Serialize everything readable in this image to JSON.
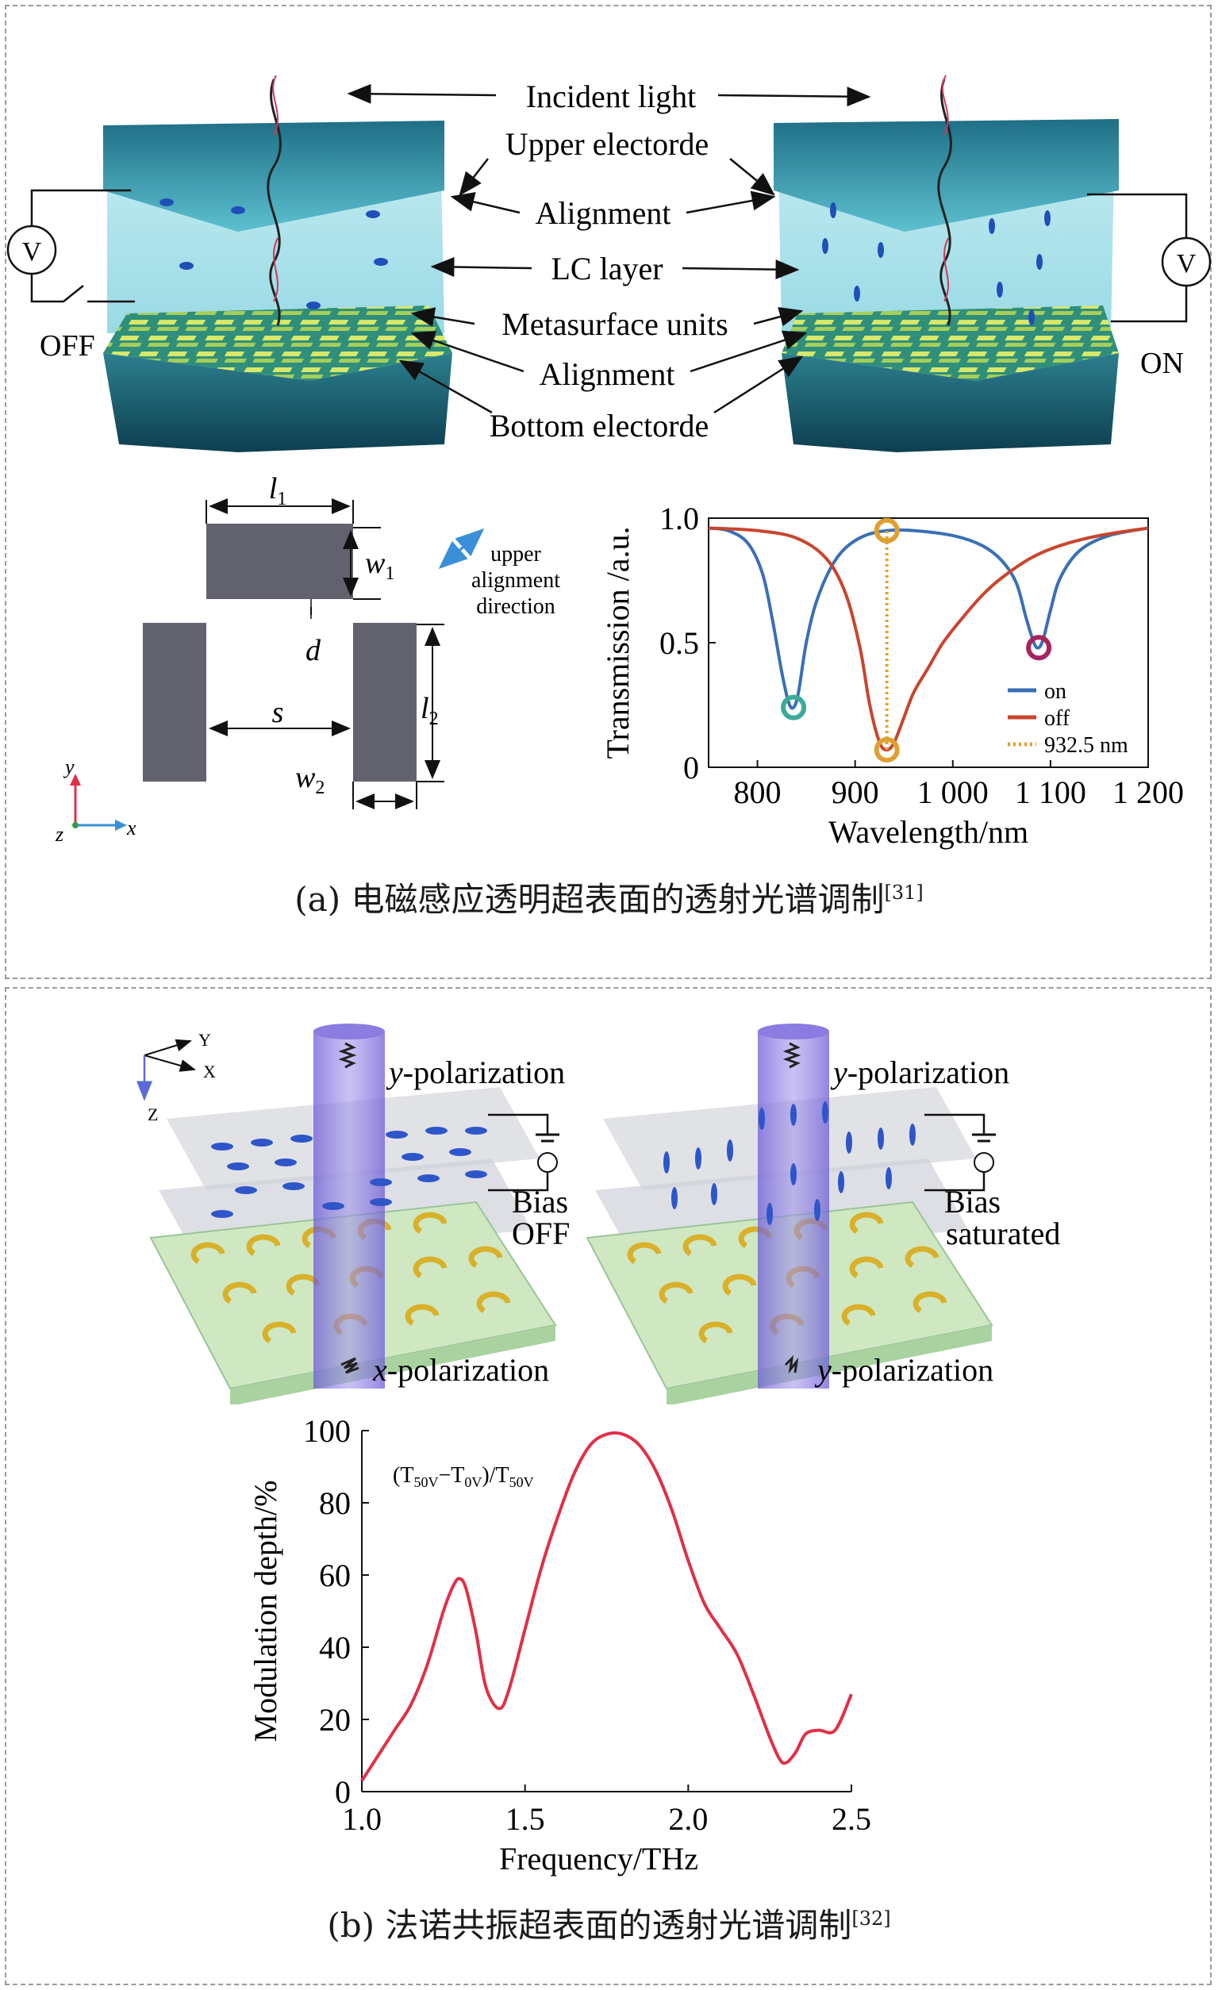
{
  "panel_a": {
    "schematic": {
      "labels": {
        "incident_light": "Incident light",
        "upper_electrode": "Upper electorde",
        "alignment_top": "Alignment",
        "lc_layer": "LC layer",
        "metasurface_units": "Metasurface units",
        "alignment_bottom": "Alignment",
        "bottom_electrode": "Bottom electorde",
        "off": "OFF",
        "on": "ON",
        "voltmeter": "V"
      }
    },
    "unit_cell": {
      "l1": "l",
      "l1_sub": "1",
      "w1": "w",
      "w1_sub": "1",
      "d": "d",
      "s": "s",
      "l2": "l",
      "l2_sub": "2",
      "w2": "w",
      "w2_sub": "2",
      "alignment_line1": "upper",
      "alignment_line2": "alignment",
      "alignment_line3": "direction",
      "axis_x": "x",
      "axis_y": "y",
      "axis_z": "z",
      "colors": {
        "bar": "#62626e",
        "alignment_arrow": "#3a8fd8"
      }
    },
    "chart_data": {
      "type": "line",
      "xlabel": "Wavelength/nm",
      "ylabel": "Transmission /a.u.",
      "xlim": [
        750,
        1200
      ],
      "ylim": [
        0,
        1.0
      ],
      "xticks": [
        800,
        900,
        1000,
        1100,
        1200
      ],
      "xtick_labels": [
        "800",
        "900",
        "1 000",
        "1 100",
        "1 200"
      ],
      "yticks": [
        0,
        0.5,
        1.0
      ],
      "ytick_labels": [
        "0",
        "0.5",
        "1.0"
      ],
      "grid": false,
      "legend_position": "bottom-right",
      "series": [
        {
          "name": "on",
          "color": "#3a6fb6",
          "x": [
            750,
            770,
            790,
            805,
            815,
            825,
            832,
            837,
            842,
            850,
            860,
            875,
            890,
            910,
            932.5,
            960,
            1000,
            1030,
            1050,
            1065,
            1075,
            1083,
            1088,
            1093,
            1100,
            1110,
            1130,
            1160,
            1200
          ],
          "y": [
            0.96,
            0.95,
            0.9,
            0.78,
            0.6,
            0.38,
            0.26,
            0.24,
            0.3,
            0.5,
            0.66,
            0.8,
            0.88,
            0.93,
            0.95,
            0.95,
            0.93,
            0.89,
            0.83,
            0.74,
            0.6,
            0.5,
            0.48,
            0.52,
            0.63,
            0.76,
            0.87,
            0.93,
            0.96
          ]
        },
        {
          "name": "off",
          "color": "#c8452d",
          "x": [
            750,
            800,
            840,
            870,
            890,
            905,
            915,
            925,
            932.5,
            940,
            950,
            960,
            975,
            990,
            1010,
            1030,
            1050,
            1080,
            1110,
            1150,
            1200
          ],
          "y": [
            0.96,
            0.95,
            0.92,
            0.84,
            0.7,
            0.48,
            0.25,
            0.1,
            0.07,
            0.1,
            0.2,
            0.3,
            0.4,
            0.5,
            0.6,
            0.69,
            0.76,
            0.84,
            0.89,
            0.93,
            0.96
          ]
        },
        {
          "name": "932.5 nm",
          "color": "#e0a030",
          "style": "dotted",
          "x": [
            932.5,
            932.5
          ],
          "y": [
            0.07,
            0.95
          ]
        }
      ],
      "markers": [
        {
          "x": 837,
          "y": 0.24,
          "color": "#3aaa99"
        },
        {
          "x": 932.5,
          "y": 0.07,
          "color": "#e0a030"
        },
        {
          "x": 932.5,
          "y": 0.95,
          "color": "#e0a030"
        },
        {
          "x": 1088,
          "y": 0.48,
          "color": "#a8245e"
        }
      ]
    },
    "caption": {
      "text": "(a) 电磁感应透明超表面的透射光谱调制",
      "ref": "[31]"
    }
  },
  "panel_b": {
    "schematic": {
      "labels": {
        "y_pol_left_italic": "y",
        "y_pol_left_rest": "-polarization",
        "y_pol_right_italic": "y",
        "y_pol_right_rest": "-polarization",
        "bias_off_1": "Bias",
        "bias_off_2": "OFF",
        "bias_sat_1": "Bias",
        "bias_sat_2": "saturated",
        "x_pol_bottom_italic": "x",
        "x_pol_bottom_rest": "-polarization",
        "y_pol_bottom_italic": "y",
        "y_pol_bottom_rest": "-polarization",
        "axis_X": "X",
        "axis_Y": "Y",
        "axis_Z": "Z"
      }
    },
    "chart_data": {
      "type": "line",
      "xlabel": "Frequency/THz",
      "ylabel": "Modulation depth/%",
      "xlim": [
        1.0,
        2.5
      ],
      "ylim": [
        0,
        100
      ],
      "xticks": [
        1.0,
        1.5,
        2.0,
        2.5
      ],
      "xtick_labels": [
        "1.0",
        "1.5",
        "2.0",
        "2.5"
      ],
      "yticks": [
        0,
        20,
        40,
        60,
        80,
        100
      ],
      "ytick_labels": [
        "0",
        "20",
        "40",
        "60",
        "80",
        "100"
      ],
      "grid": false,
      "annotation": {
        "t1": "(T",
        "s1": "50V",
        "t2": "−T",
        "s2": "0V",
        "t3": ")/T",
        "s3": "50V"
      },
      "series": [
        {
          "color": "#e03048",
          "x": [
            1.0,
            1.05,
            1.1,
            1.15,
            1.2,
            1.25,
            1.28,
            1.3,
            1.32,
            1.35,
            1.38,
            1.42,
            1.45,
            1.5,
            1.55,
            1.6,
            1.65,
            1.7,
            1.75,
            1.8,
            1.85,
            1.9,
            1.95,
            2.0,
            2.05,
            2.1,
            2.15,
            2.2,
            2.25,
            2.28,
            2.3,
            2.33,
            2.36,
            2.4,
            2.45,
            2.5
          ],
          "y": [
            3,
            10,
            17,
            24,
            35,
            50,
            57,
            59,
            56,
            44,
            29,
            23,
            28,
            45,
            62,
            76,
            88,
            96,
            99,
            99,
            96,
            89,
            78,
            64,
            52,
            45,
            38,
            27,
            15,
            9,
            8,
            11,
            16,
            17,
            17,
            27
          ]
        }
      ]
    },
    "caption": {
      "text": "(b) 法诺共振超表面的透射光谱调制",
      "ref": "[32]"
    }
  }
}
